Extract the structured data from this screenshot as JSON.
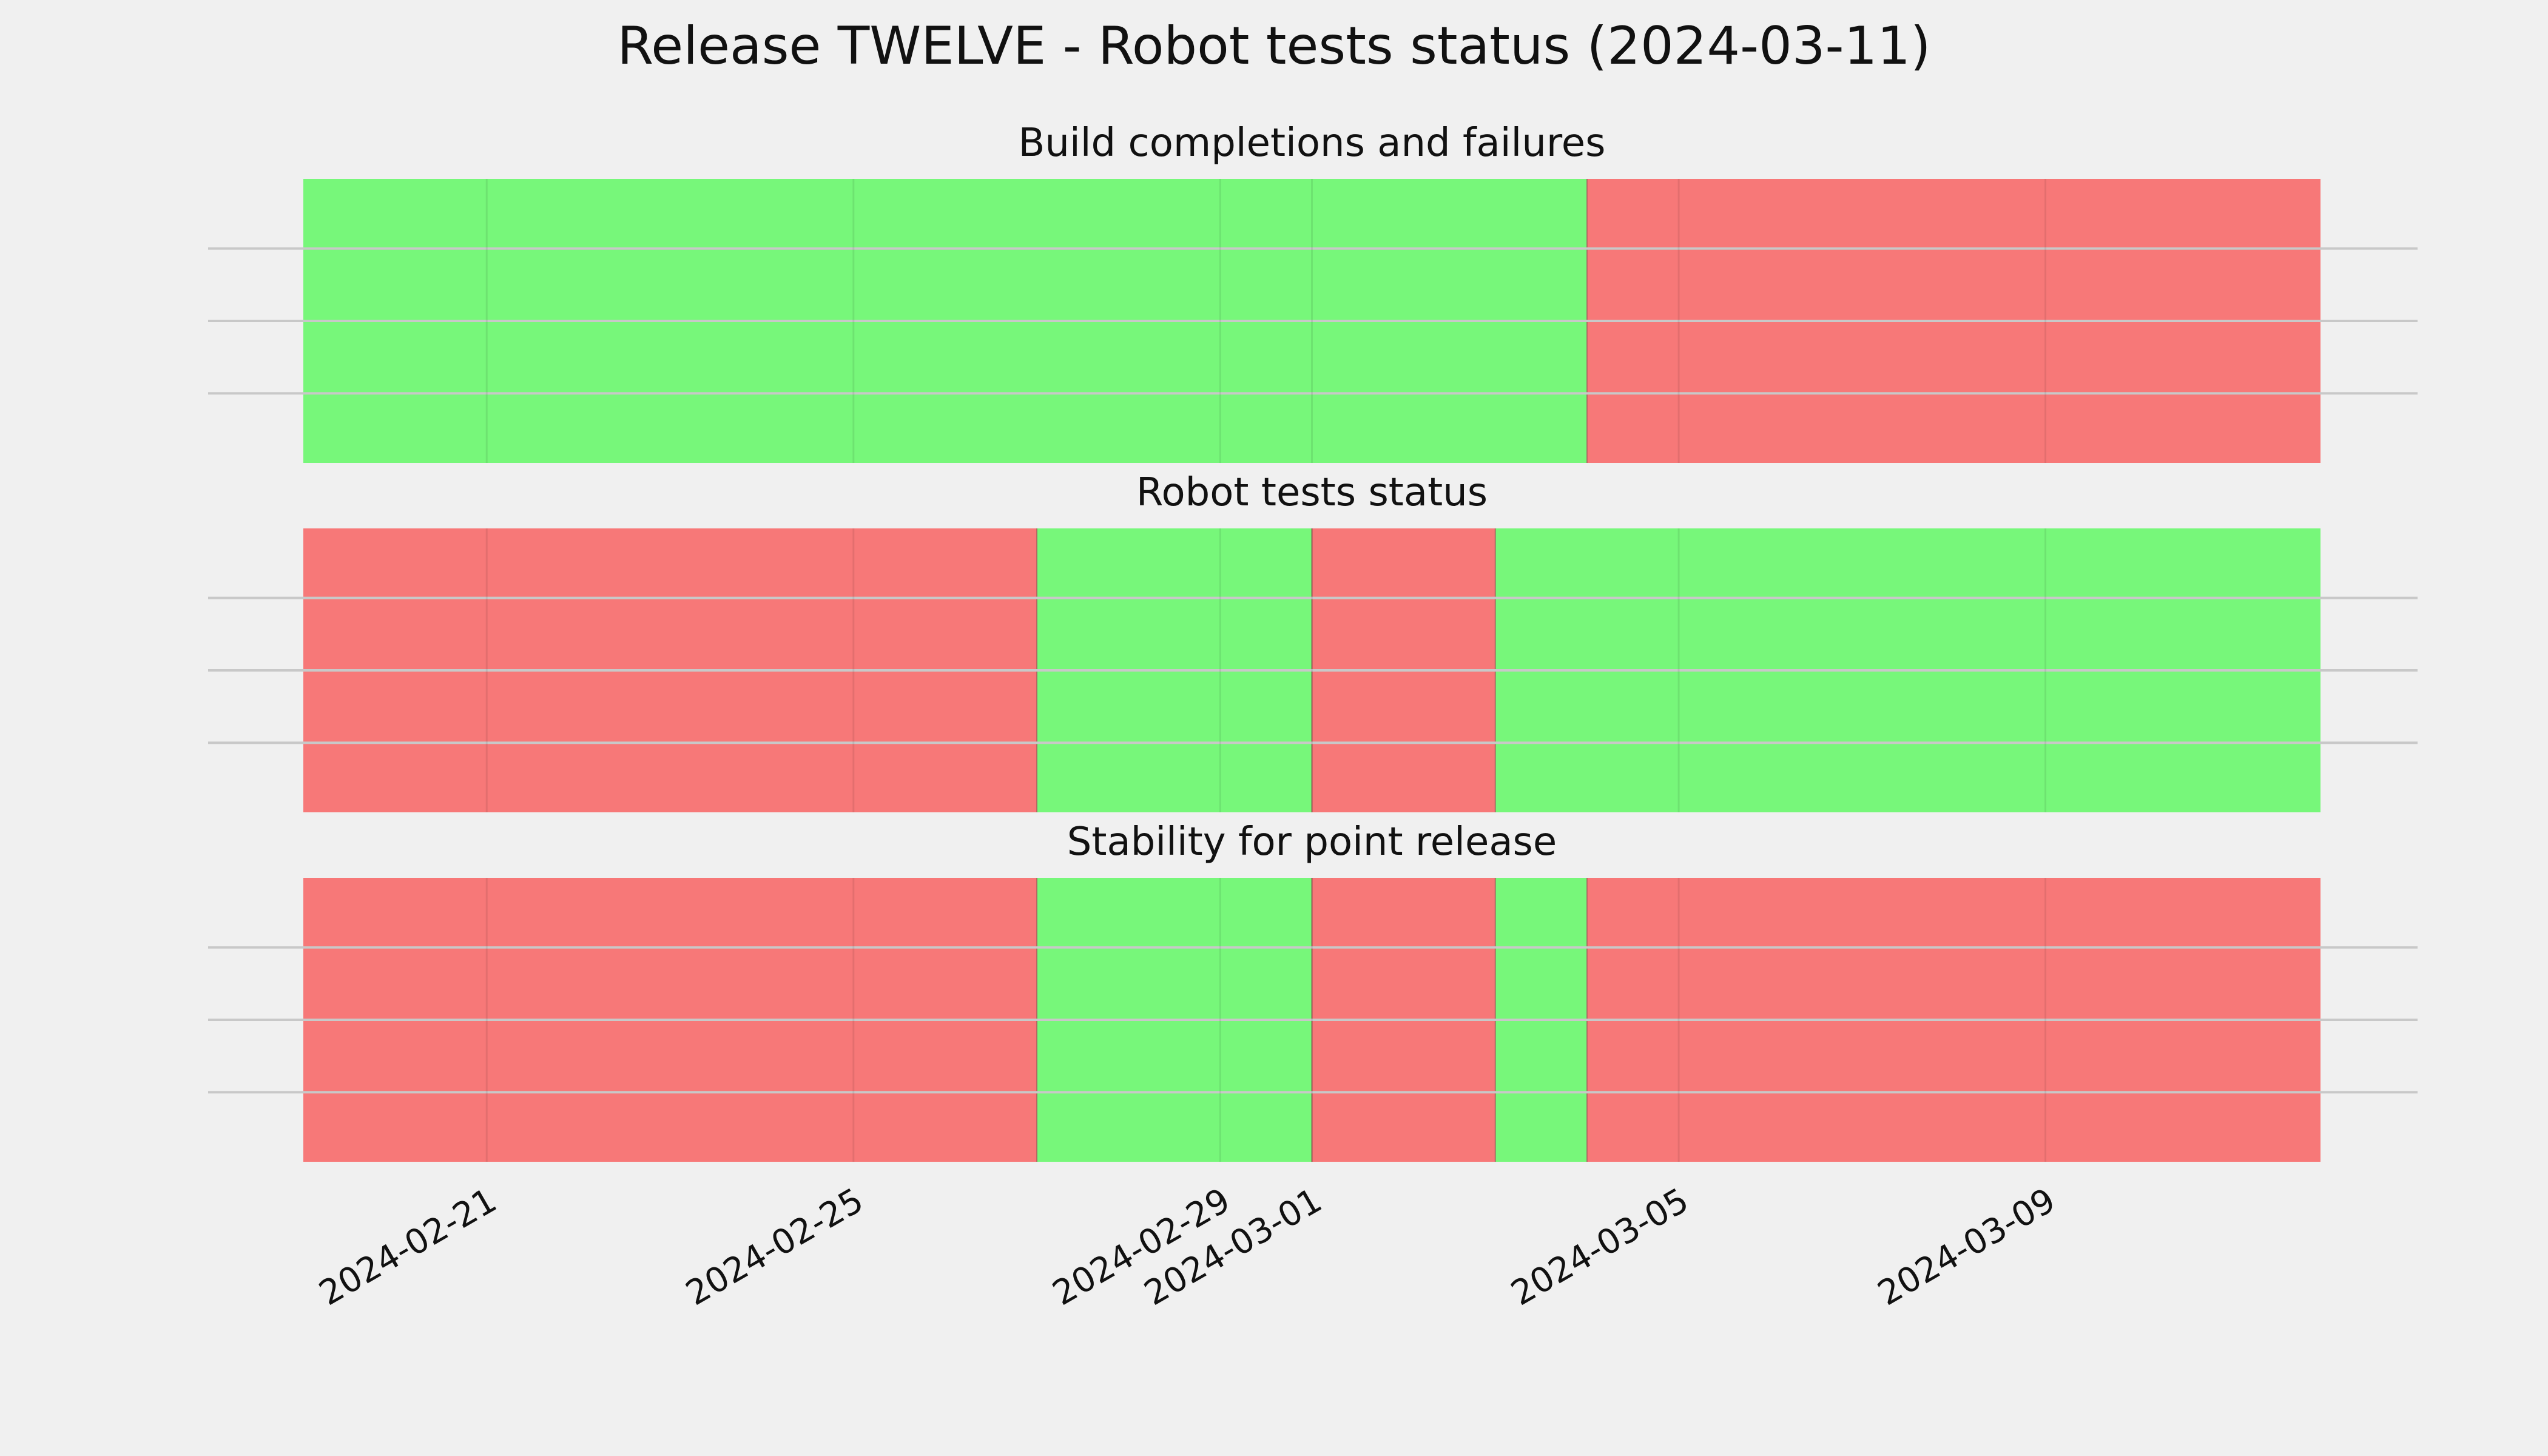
{
  "figure": {
    "title": "Release TWELVE - Robot tests status (2024-03-11)",
    "background": "#f0f0f0",
    "colors": {
      "pass": "#77f77a",
      "fail": "#f77878",
      "grid": "#c8c8c8"
    }
  },
  "chart_data": [
    {
      "type": "timeline",
      "title": "Build completions and failures",
      "xlim": [
        "2024-02-19",
        "2024-03-12"
      ],
      "xticks": [
        "2024-02-21",
        "2024-02-25",
        "2024-02-29",
        "2024-03-01",
        "2024-03-05",
        "2024-03-09"
      ],
      "grid": true,
      "segments": [
        {
          "start": "2024-02-19",
          "end": "2024-03-04",
          "status": "pass"
        },
        {
          "start": "2024-03-04",
          "end": "2024-03-12",
          "status": "fail"
        }
      ]
    },
    {
      "type": "timeline",
      "title": "Robot tests status",
      "xlim": [
        "2024-02-19",
        "2024-03-12"
      ],
      "xticks": [
        "2024-02-21",
        "2024-02-25",
        "2024-02-29",
        "2024-03-01",
        "2024-03-05",
        "2024-03-09"
      ],
      "grid": true,
      "segments": [
        {
          "start": "2024-02-19",
          "end": "2024-02-27",
          "status": "fail"
        },
        {
          "start": "2024-02-27",
          "end": "2024-03-01",
          "status": "pass"
        },
        {
          "start": "2024-03-01",
          "end": "2024-03-03",
          "status": "fail"
        },
        {
          "start": "2024-03-03",
          "end": "2024-03-12",
          "status": "pass"
        }
      ]
    },
    {
      "type": "timeline",
      "title": "Stability for point release",
      "xlim": [
        "2024-02-19",
        "2024-03-12"
      ],
      "xticks": [
        "2024-02-21",
        "2024-02-25",
        "2024-02-29",
        "2024-03-01",
        "2024-03-05",
        "2024-03-09"
      ],
      "grid": true,
      "segments": [
        {
          "start": "2024-02-19",
          "end": "2024-02-27",
          "status": "fail"
        },
        {
          "start": "2024-02-27",
          "end": "2024-03-01",
          "status": "pass"
        },
        {
          "start": "2024-03-01",
          "end": "2024-03-03",
          "status": "fail"
        },
        {
          "start": "2024-03-03",
          "end": "2024-03-04",
          "status": "pass"
        },
        {
          "start": "2024-03-04",
          "end": "2024-03-12",
          "status": "fail"
        }
      ]
    }
  ]
}
